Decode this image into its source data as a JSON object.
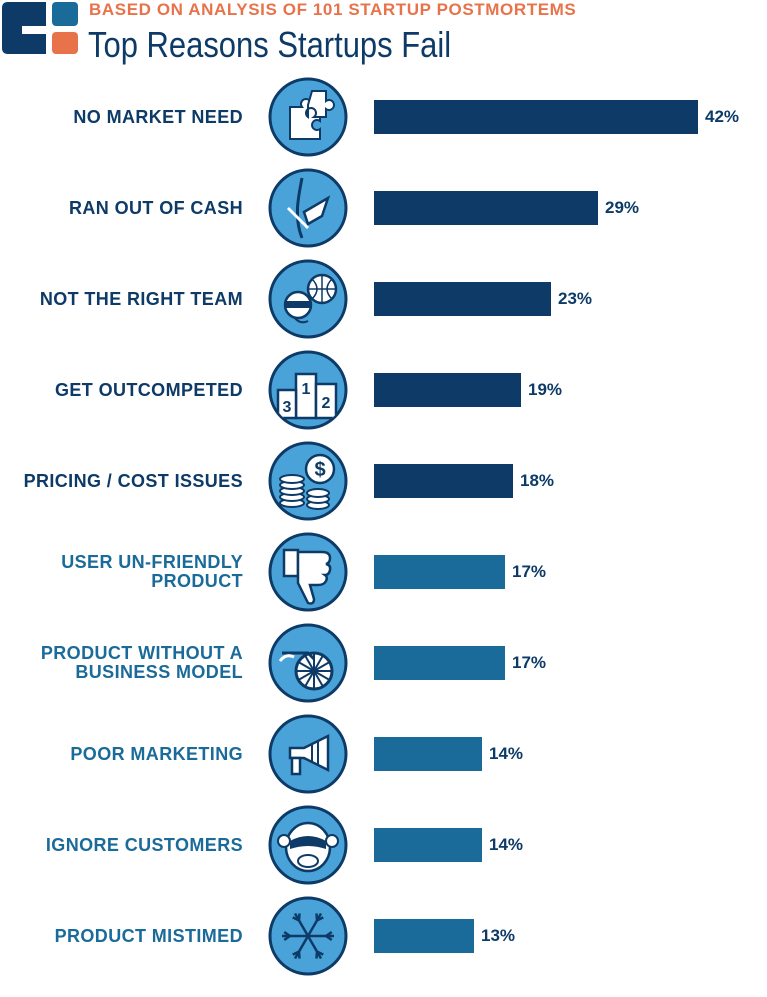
{
  "header": {
    "subtitle": "BASED ON ANALYSIS OF 101 STARTUP POSTMORTEMS",
    "title": "Top Reasons Startups Fail"
  },
  "colors": {
    "dark": "#0d3a66",
    "light": "#1a6b9a",
    "accent": "#e8734a",
    "icon_fill": "#4aa3d8"
  },
  "chart_data": {
    "type": "bar",
    "orientation": "horizontal",
    "title": "Top Reasons Startups Fail",
    "subtitle": "BASED ON ANALYSIS OF 101 STARTUP POSTMORTEMS",
    "categories": [
      "NO MARKET NEED",
      "RAN OUT OF CASH",
      "NOT THE RIGHT TEAM",
      "GET OUTCOMPETED",
      "PRICING / COST ISSUES",
      "USER UN-FRIENDLY PRODUCT",
      "PRODUCT WITHOUT A BUSINESS MODEL",
      "POOR MARKETING",
      "IGNORE CUSTOMERS",
      "PRODUCT MISTIMED"
    ],
    "label_lines": [
      [
        "NO MARKET NEED"
      ],
      [
        "RAN OUT OF CASH"
      ],
      [
        "NOT THE RIGHT TEAM"
      ],
      [
        "GET OUTCOMPETED"
      ],
      [
        "PRICING / COST ISSUES"
      ],
      [
        "USER UN-FRIENDLY",
        "PRODUCT"
      ],
      [
        "PRODUCT WITHOUT A",
        "BUSINESS MODEL"
      ],
      [
        "POOR MARKETING"
      ],
      [
        "IGNORE CUSTOMERS"
      ],
      [
        "PRODUCT MISTIMED"
      ]
    ],
    "values": [
      42,
      29,
      23,
      19,
      18,
      17,
      17,
      14,
      14,
      13
    ],
    "value_labels": [
      "42%",
      "29%",
      "23%",
      "19%",
      "18%",
      "17%",
      "17%",
      "14%",
      "14%",
      "13%"
    ],
    "icons": [
      "puzzle-icon",
      "empty-pocket-icon",
      "team-headset-icon",
      "podium-icon",
      "coins-icon",
      "thumbs-down-icon",
      "wagon-wheel-icon",
      "megaphone-icon",
      "see-no-evil-monkey-icon",
      "snowflake-icon"
    ],
    "podium_numbers": [
      "3",
      "1",
      "2"
    ],
    "coin_symbol": "$",
    "xlim": [
      0,
      42
    ],
    "xlabel": "",
    "ylabel": "",
    "grid": false,
    "legend": "none"
  }
}
